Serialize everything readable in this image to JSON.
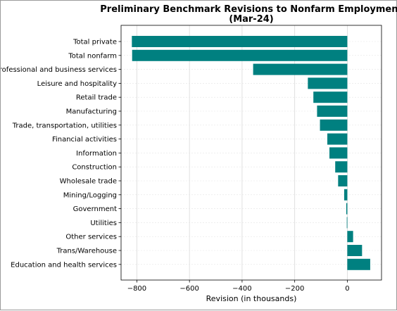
{
  "chart_data": {
    "type": "bar",
    "orientation": "horizontal",
    "title": "Preliminary Benchmark Revisions to Nonfarm Employment",
    "subtitle": "(Mar-24)",
    "xlabel": "Revision (in thousands)",
    "ylabel": "",
    "xlim": [
      -860,
      130
    ],
    "xticks": [
      -800,
      -600,
      -400,
      -200,
      0
    ],
    "xtick_labels": [
      "−800",
      "−600",
      "−400",
      "−200",
      "0"
    ],
    "grid": true,
    "bar_color": "#008080",
    "categories": [
      "Total private",
      "Total nonfarm",
      "Professional and business services",
      "Leisure and hospitality",
      "Retail trade",
      "Manufacturing",
      "Trade, transportation, utilities",
      "Financial activities",
      "Information",
      "Construction",
      "Wholesale trade",
      "Mining/Logging",
      "Government",
      "Utilities",
      "Other services",
      "Trans/Warehouse",
      "Education and health services"
    ],
    "values": [
      -819,
      -818,
      -358,
      -150,
      -129,
      -115,
      -104,
      -76,
      -68,
      -46,
      -35,
      -12,
      -4,
      -2,
      22,
      56,
      87
    ]
  }
}
